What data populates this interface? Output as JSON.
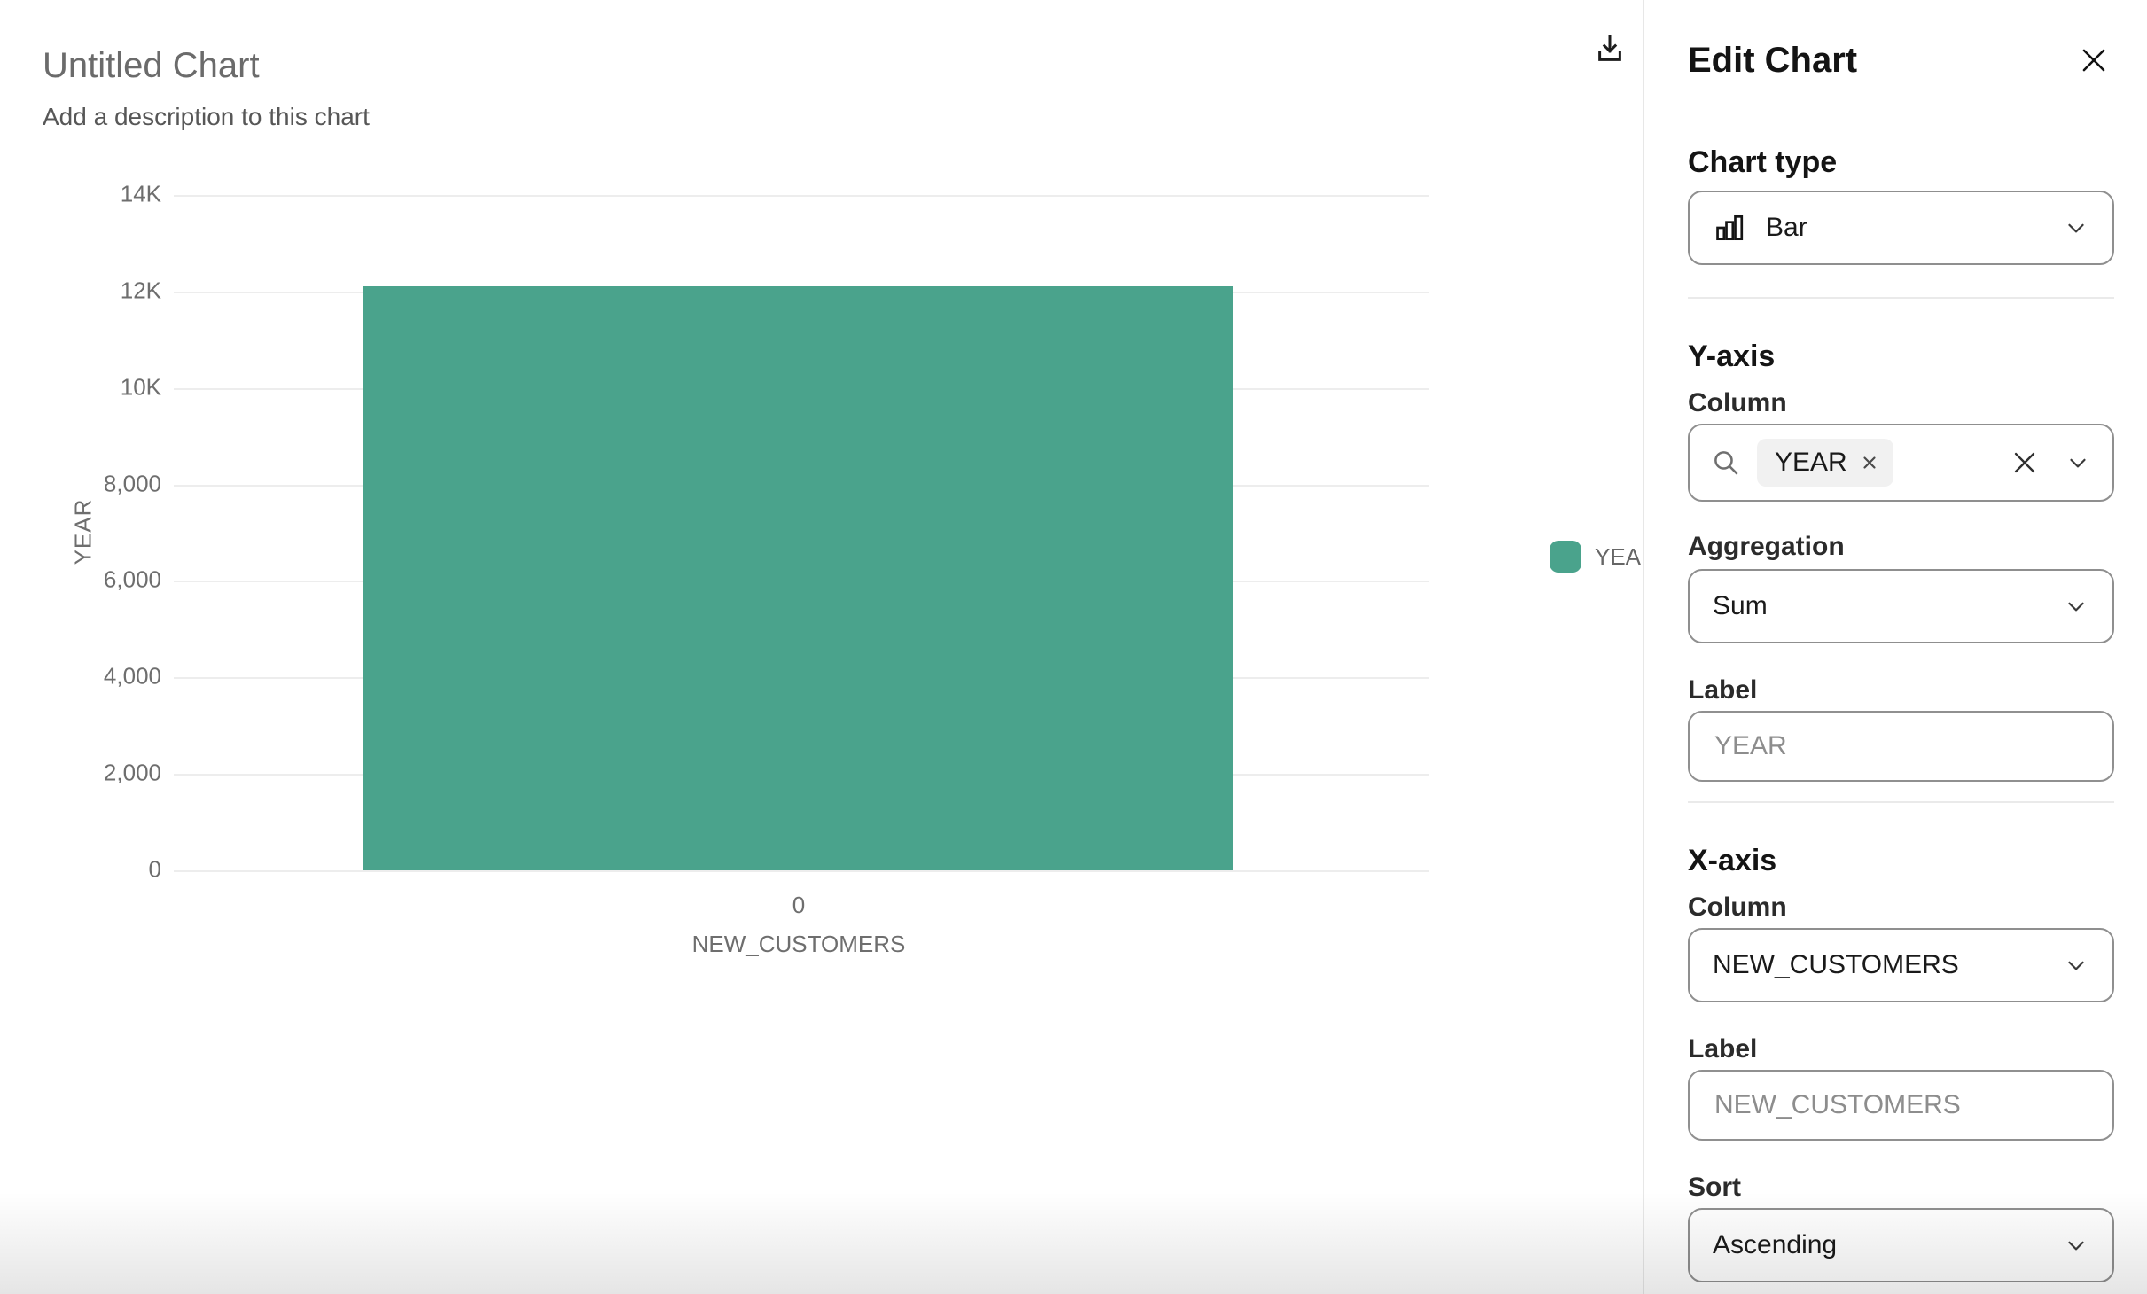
{
  "chart": {
    "title": "Untitled Chart",
    "subtitle": "Add a description to this chart",
    "y_axis_title": "YEAR",
    "x_axis_title": "NEW_CUSTOMERS",
    "x_tick": "0",
    "y_ticks": [
      "14K",
      "12K",
      "10K",
      "8,000",
      "6,000",
      "4,000",
      "2,000",
      "0"
    ],
    "legend": [
      {
        "label": "YEAR",
        "color": "#4aa38c"
      }
    ]
  },
  "chart_data": {
    "type": "bar",
    "title": "Untitled Chart",
    "categories": [
      "0"
    ],
    "series": [
      {
        "name": "YEAR",
        "values": [
          12100
        ],
        "color": "#4aa38c"
      }
    ],
    "xlabel": "NEW_CUSTOMERS",
    "ylabel": "YEAR",
    "ylim": [
      0,
      14000
    ],
    "ytick_labels": [
      "0",
      "2,000",
      "4,000",
      "6,000",
      "8,000",
      "10K",
      "12K",
      "14K"
    ],
    "aggregation": "Sum",
    "grid": true,
    "legend_position": "right"
  },
  "toolbar": {
    "download_icon": "download"
  },
  "panel": {
    "title": "Edit Chart",
    "close_icon": "close",
    "chart_type": {
      "heading": "Chart type",
      "value": "Bar",
      "icon": "bar-chart"
    },
    "y_axis": {
      "heading": "Y-axis",
      "column_label": "Column",
      "column_chip": "YEAR",
      "aggregation_label": "Aggregation",
      "aggregation_value": "Sum",
      "label_label": "Label",
      "label_placeholder": "YEAR"
    },
    "x_axis": {
      "heading": "X-axis",
      "column_label": "Column",
      "column_value": "NEW_CUSTOMERS",
      "label_label": "Label",
      "label_placeholder": "NEW_CUSTOMERS",
      "sort_label": "Sort",
      "sort_value": "Ascending"
    }
  },
  "colors": {
    "bar": "#4aa38c",
    "gridline": "#ededed"
  }
}
